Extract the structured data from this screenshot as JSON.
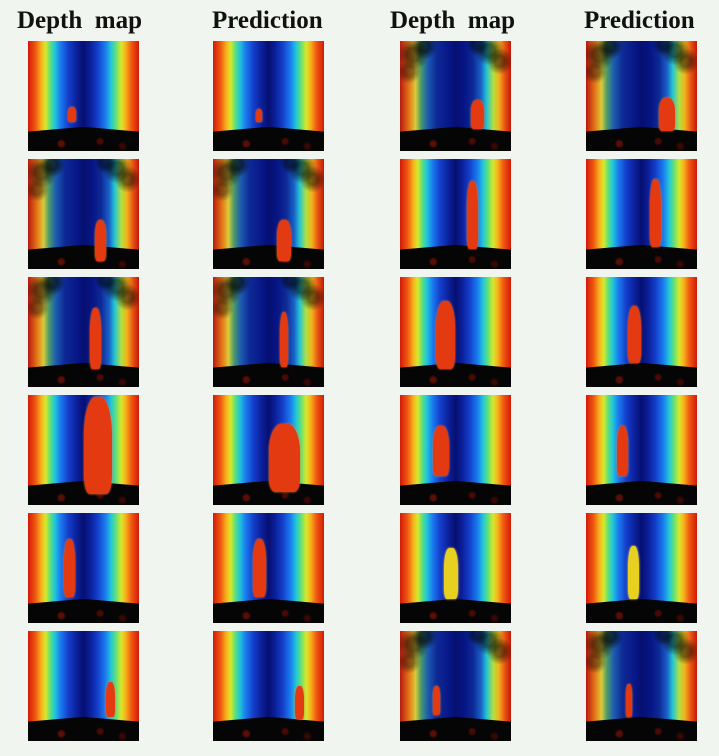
{
  "headers": [
    "Depth  map",
    "Prediction",
    "Depth  map",
    "Prediction"
  ],
  "grid": {
    "rows": 6,
    "columns": 4
  }
}
